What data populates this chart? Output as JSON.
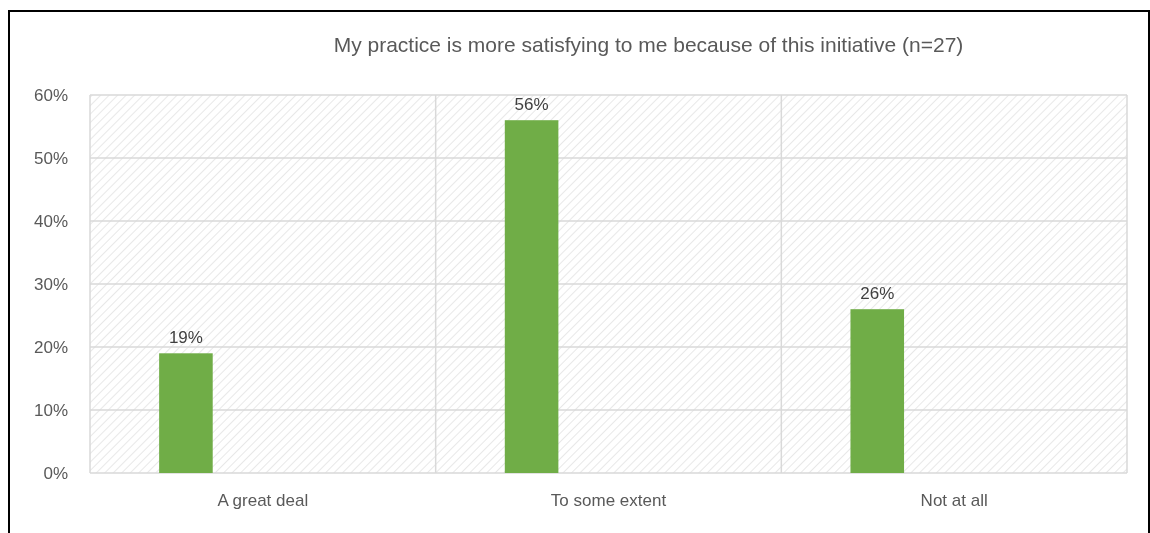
{
  "chart_data": {
    "type": "bar",
    "title": "My practice is more satisfying to me because of this initiative (n=27)",
    "categories": [
      "A great deal",
      "To some extent",
      "Not at all"
    ],
    "values": [
      19,
      56,
      26
    ],
    "value_labels": [
      "19%",
      "56%",
      "26%"
    ],
    "color": "#70ad47",
    "ylim": [
      0,
      60
    ],
    "yticks": [
      {
        "value": 0,
        "label": "0%"
      },
      {
        "value": 10,
        "label": "10%"
      },
      {
        "value": 20,
        "label": "20%"
      },
      {
        "value": 30,
        "label": "30%"
      },
      {
        "value": 40,
        "label": "40%"
      },
      {
        "value": 50,
        "label": "50%"
      },
      {
        "value": 60,
        "label": "60%"
      }
    ],
    "grid": true
  }
}
